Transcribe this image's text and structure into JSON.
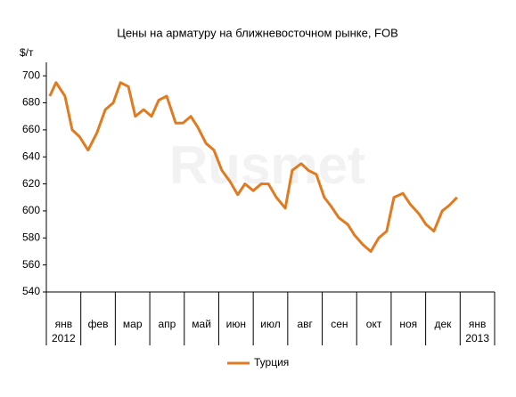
{
  "chart_data": {
    "type": "line",
    "title": "Цены на арматуру на ближневосточном рынке, FOB",
    "y_label": "$/т",
    "watermark": "Rusmet",
    "xlim": [
      0,
      13
    ],
    "xticks": [
      {
        "value": 0.5,
        "label": "янв"
      },
      {
        "value": 1.5,
        "label": "фев"
      },
      {
        "value": 2.5,
        "label": "мар"
      },
      {
        "value": 3.5,
        "label": "апр"
      },
      {
        "value": 4.5,
        "label": "май"
      },
      {
        "value": 5.5,
        "label": "июн"
      },
      {
        "value": 6.5,
        "label": "июл"
      },
      {
        "value": 7.5,
        "label": "авг"
      },
      {
        "value": 8.5,
        "label": "сен"
      },
      {
        "value": 9.5,
        "label": "окт"
      },
      {
        "value": 10.5,
        "label": "ноя"
      },
      {
        "value": 11.5,
        "label": "дек"
      },
      {
        "value": 12.5,
        "label": "янв"
      }
    ],
    "year_labels": [
      {
        "value": 0.5,
        "label": "2012"
      },
      {
        "value": 12.5,
        "label": "2013"
      }
    ],
    "ylim": [
      540,
      710
    ],
    "yticks": [
      540,
      560,
      580,
      600,
      620,
      640,
      660,
      680,
      700
    ],
    "grid": false,
    "legend": "bottom",
    "x": [
      0.1,
      0.28,
      0.54,
      0.75,
      0.96,
      1.21,
      1.47,
      1.71,
      1.94,
      2.15,
      2.38,
      2.58,
      2.82,
      3.05,
      3.26,
      3.49,
      3.75,
      3.96,
      4.19,
      4.39,
      4.63,
      4.86,
      5.09,
      5.32,
      5.55,
      5.76,
      6.0,
      6.23,
      6.44,
      6.67,
      6.93,
      7.13,
      7.39,
      7.6,
      7.83,
      8.06,
      8.27,
      8.48,
      8.74,
      8.94,
      9.18,
      9.41,
      9.64,
      9.87,
      10.08,
      10.34,
      10.55,
      10.8,
      11.01,
      11.24,
      11.48,
      11.68,
      11.91
    ],
    "series": [
      {
        "name": "Турция",
        "color": "#e07b20",
        "values": [
          685,
          695,
          685,
          660,
          655,
          645,
          658,
          675,
          680,
          695,
          692,
          670,
          675,
          670,
          682,
          685,
          665,
          665,
          670,
          662,
          650,
          645,
          630,
          622,
          612,
          620,
          615,
          620,
          620,
          610,
          602,
          630,
          635,
          630,
          627,
          610,
          603,
          595,
          590,
          582,
          575,
          570,
          580,
          585,
          610,
          613,
          605,
          598,
          590,
          585,
          600,
          604,
          610
        ]
      }
    ]
  }
}
